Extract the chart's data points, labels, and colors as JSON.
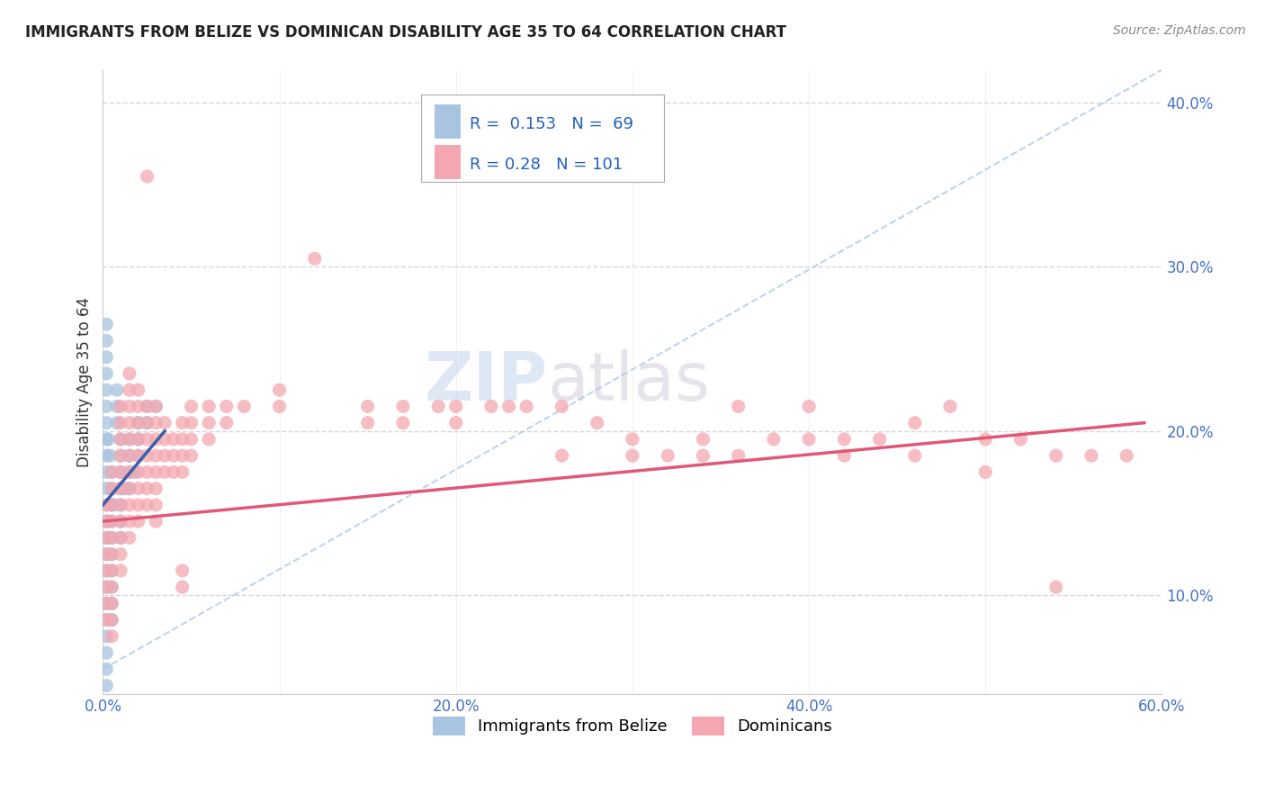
{
  "title": "IMMIGRANTS FROM BELIZE VS DOMINICAN DISABILITY AGE 35 TO 64 CORRELATION CHART",
  "source_text": "Source: ZipAtlas.com",
  "ylabel": "Disability Age 35 to 64",
  "xlim": [
    0.0,
    0.6
  ],
  "ylim": [
    0.04,
    0.42
  ],
  "xtick_labels": [
    "0.0%",
    "",
    "20.0%",
    "",
    "40.0%",
    "",
    "60.0%"
  ],
  "xtick_vals": [
    0.0,
    0.1,
    0.2,
    0.3,
    0.4,
    0.5,
    0.6
  ],
  "ytick_labels": [
    "10.0%",
    "20.0%",
    "30.0%",
    "40.0%"
  ],
  "ytick_vals": [
    0.1,
    0.2,
    0.3,
    0.4
  ],
  "belize_color": "#a8c4e0",
  "dominican_color": "#f4a7b0",
  "belize_line_color": "#3a5fa8",
  "dominican_line_color": "#e05878",
  "belize_R": 0.153,
  "belize_N": 69,
  "dominican_R": 0.28,
  "dominican_N": 101,
  "watermark_zip": "ZIP",
  "watermark_atlas": "atlas",
  "legend_entries": [
    "Immigrants from Belize",
    "Dominicans"
  ],
  "belize_scatter": [
    [
      0.002,
      0.265
    ],
    [
      0.002,
      0.255
    ],
    [
      0.002,
      0.245
    ],
    [
      0.002,
      0.235
    ],
    [
      0.002,
      0.225
    ],
    [
      0.002,
      0.215
    ],
    [
      0.002,
      0.205
    ],
    [
      0.002,
      0.195
    ],
    [
      0.002,
      0.185
    ],
    [
      0.002,
      0.175
    ],
    [
      0.002,
      0.165
    ],
    [
      0.002,
      0.155
    ],
    [
      0.002,
      0.145
    ],
    [
      0.002,
      0.135
    ],
    [
      0.002,
      0.125
    ],
    [
      0.002,
      0.115
    ],
    [
      0.002,
      0.105
    ],
    [
      0.002,
      0.095
    ],
    [
      0.002,
      0.085
    ],
    [
      0.002,
      0.075
    ],
    [
      0.002,
      0.065
    ],
    [
      0.002,
      0.055
    ],
    [
      0.005,
      0.175
    ],
    [
      0.005,
      0.165
    ],
    [
      0.005,
      0.155
    ],
    [
      0.005,
      0.145
    ],
    [
      0.005,
      0.135
    ],
    [
      0.005,
      0.125
    ],
    [
      0.005,
      0.115
    ],
    [
      0.005,
      0.105
    ],
    [
      0.005,
      0.095
    ],
    [
      0.005,
      0.085
    ],
    [
      0.01,
      0.195
    ],
    [
      0.01,
      0.185
    ],
    [
      0.01,
      0.175
    ],
    [
      0.01,
      0.165
    ],
    [
      0.01,
      0.155
    ],
    [
      0.01,
      0.145
    ],
    [
      0.01,
      0.135
    ],
    [
      0.015,
      0.195
    ],
    [
      0.015,
      0.185
    ],
    [
      0.015,
      0.175
    ],
    [
      0.015,
      0.165
    ],
    [
      0.02,
      0.205
    ],
    [
      0.02,
      0.195
    ],
    [
      0.02,
      0.185
    ],
    [
      0.025,
      0.215
    ],
    [
      0.025,
      0.205
    ],
    [
      0.03,
      0.215
    ],
    [
      0.008,
      0.205
    ],
    [
      0.008,
      0.215
    ],
    [
      0.008,
      0.225
    ],
    [
      0.003,
      0.145
    ],
    [
      0.004,
      0.135
    ],
    [
      0.006,
      0.155
    ],
    [
      0.003,
      0.195
    ],
    [
      0.004,
      0.185
    ],
    [
      0.002,
      0.045
    ],
    [
      0.012,
      0.165
    ],
    [
      0.018,
      0.175
    ]
  ],
  "dominican_scatter": [
    [
      0.002,
      0.155
    ],
    [
      0.002,
      0.145
    ],
    [
      0.002,
      0.135
    ],
    [
      0.002,
      0.125
    ],
    [
      0.002,
      0.115
    ],
    [
      0.002,
      0.105
    ],
    [
      0.002,
      0.095
    ],
    [
      0.002,
      0.085
    ],
    [
      0.005,
      0.175
    ],
    [
      0.005,
      0.165
    ],
    [
      0.005,
      0.155
    ],
    [
      0.005,
      0.145
    ],
    [
      0.005,
      0.135
    ],
    [
      0.005,
      0.125
    ],
    [
      0.005,
      0.115
    ],
    [
      0.005,
      0.105
    ],
    [
      0.005,
      0.095
    ],
    [
      0.005,
      0.085
    ],
    [
      0.005,
      0.075
    ],
    [
      0.01,
      0.215
    ],
    [
      0.01,
      0.205
    ],
    [
      0.01,
      0.195
    ],
    [
      0.01,
      0.185
    ],
    [
      0.01,
      0.175
    ],
    [
      0.01,
      0.165
    ],
    [
      0.01,
      0.155
    ],
    [
      0.01,
      0.145
    ],
    [
      0.01,
      0.135
    ],
    [
      0.01,
      0.125
    ],
    [
      0.01,
      0.115
    ],
    [
      0.015,
      0.235
    ],
    [
      0.015,
      0.225
    ],
    [
      0.015,
      0.215
    ],
    [
      0.015,
      0.205
    ],
    [
      0.015,
      0.195
    ],
    [
      0.015,
      0.185
    ],
    [
      0.015,
      0.175
    ],
    [
      0.015,
      0.165
    ],
    [
      0.015,
      0.155
    ],
    [
      0.015,
      0.145
    ],
    [
      0.015,
      0.135
    ],
    [
      0.02,
      0.225
    ],
    [
      0.02,
      0.215
    ],
    [
      0.02,
      0.205
    ],
    [
      0.02,
      0.195
    ],
    [
      0.02,
      0.185
    ],
    [
      0.02,
      0.175
    ],
    [
      0.02,
      0.165
    ],
    [
      0.02,
      0.155
    ],
    [
      0.02,
      0.145
    ],
    [
      0.025,
      0.355
    ],
    [
      0.025,
      0.215
    ],
    [
      0.025,
      0.205
    ],
    [
      0.025,
      0.195
    ],
    [
      0.025,
      0.185
    ],
    [
      0.025,
      0.175
    ],
    [
      0.025,
      0.165
    ],
    [
      0.025,
      0.155
    ],
    [
      0.03,
      0.215
    ],
    [
      0.03,
      0.205
    ],
    [
      0.03,
      0.195
    ],
    [
      0.03,
      0.185
    ],
    [
      0.03,
      0.175
    ],
    [
      0.03,
      0.165
    ],
    [
      0.03,
      0.155
    ],
    [
      0.03,
      0.145
    ],
    [
      0.035,
      0.205
    ],
    [
      0.035,
      0.195
    ],
    [
      0.035,
      0.185
    ],
    [
      0.035,
      0.175
    ],
    [
      0.04,
      0.195
    ],
    [
      0.04,
      0.185
    ],
    [
      0.04,
      0.175
    ],
    [
      0.045,
      0.205
    ],
    [
      0.045,
      0.195
    ],
    [
      0.045,
      0.185
    ],
    [
      0.045,
      0.175
    ],
    [
      0.045,
      0.115
    ],
    [
      0.045,
      0.105
    ],
    [
      0.05,
      0.215
    ],
    [
      0.05,
      0.205
    ],
    [
      0.05,
      0.195
    ],
    [
      0.05,
      0.185
    ],
    [
      0.06,
      0.215
    ],
    [
      0.06,
      0.205
    ],
    [
      0.06,
      0.195
    ],
    [
      0.07,
      0.215
    ],
    [
      0.07,
      0.205
    ],
    [
      0.08,
      0.215
    ],
    [
      0.1,
      0.225
    ],
    [
      0.1,
      0.215
    ],
    [
      0.12,
      0.305
    ],
    [
      0.15,
      0.215
    ],
    [
      0.15,
      0.205
    ],
    [
      0.17,
      0.215
    ],
    [
      0.17,
      0.205
    ],
    [
      0.19,
      0.215
    ],
    [
      0.2,
      0.215
    ],
    [
      0.2,
      0.205
    ],
    [
      0.22,
      0.215
    ],
    [
      0.23,
      0.215
    ],
    [
      0.24,
      0.215
    ],
    [
      0.26,
      0.215
    ],
    [
      0.26,
      0.185
    ],
    [
      0.28,
      0.205
    ],
    [
      0.3,
      0.195
    ],
    [
      0.3,
      0.185
    ],
    [
      0.32,
      0.185
    ],
    [
      0.34,
      0.185
    ],
    [
      0.34,
      0.195
    ],
    [
      0.36,
      0.215
    ],
    [
      0.36,
      0.185
    ],
    [
      0.38,
      0.195
    ],
    [
      0.4,
      0.215
    ],
    [
      0.4,
      0.195
    ],
    [
      0.42,
      0.195
    ],
    [
      0.42,
      0.185
    ],
    [
      0.44,
      0.195
    ],
    [
      0.46,
      0.205
    ],
    [
      0.46,
      0.185
    ],
    [
      0.48,
      0.215
    ],
    [
      0.5,
      0.195
    ],
    [
      0.5,
      0.175
    ],
    [
      0.52,
      0.195
    ],
    [
      0.54,
      0.185
    ],
    [
      0.54,
      0.105
    ],
    [
      0.56,
      0.185
    ],
    [
      0.58,
      0.185
    ]
  ],
  "belize_line": {
    "x0": 0.0,
    "x1": 0.035,
    "y0": 0.155,
    "y1": 0.2
  },
  "dominican_line": {
    "x0": 0.0,
    "x1": 0.59,
    "y0": 0.145,
    "y1": 0.205
  },
  "diag_line": {
    "x0": 0.0,
    "x1": 0.6,
    "y0": 0.055,
    "y1": 0.42
  }
}
